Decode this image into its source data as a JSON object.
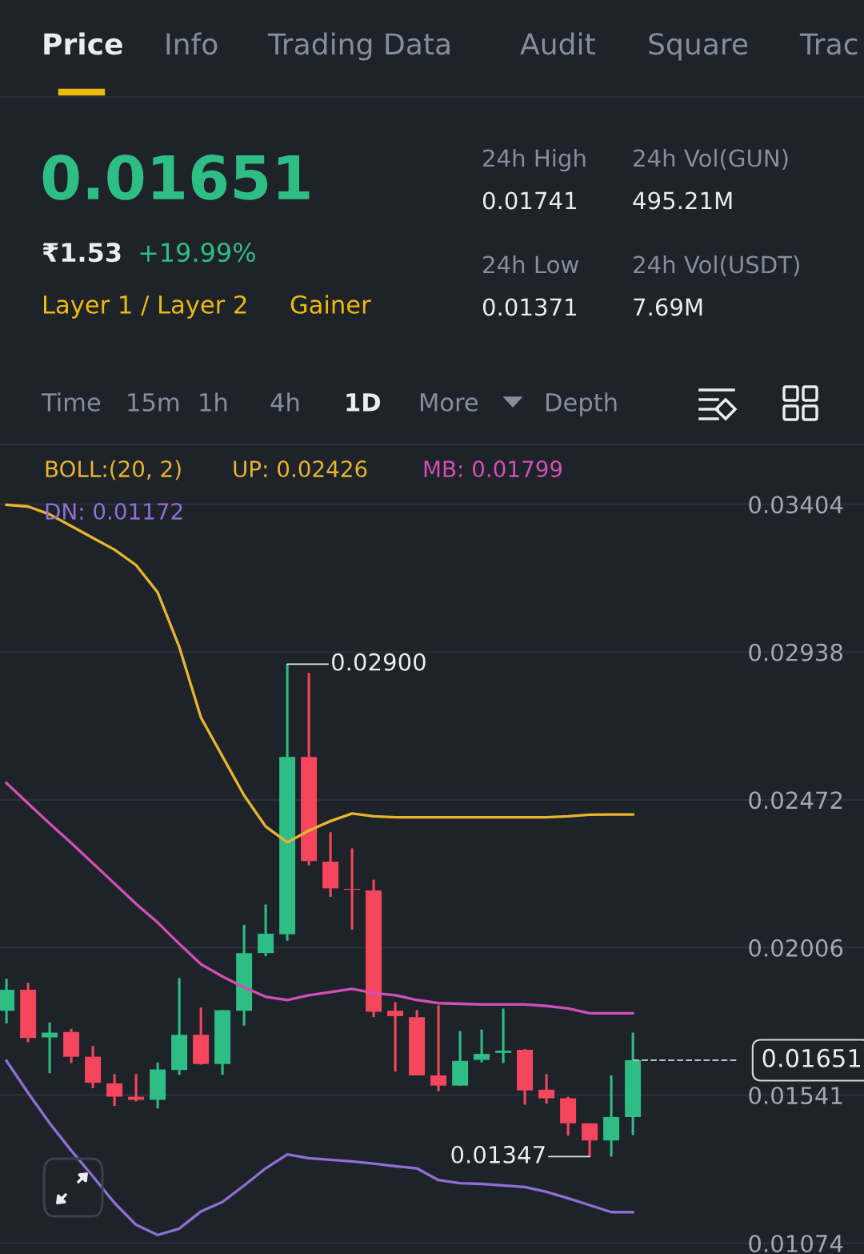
{
  "chart_data": {
    "type": "candlestick",
    "annotations": [
      "Price",
      "Info",
      "Trading Data",
      "Audit",
      "Square",
      "Trac",
      "0.01651",
      "₹1.53",
      "+19.99%",
      "Layer 1 / Layer 2",
      "Gainer",
      "24h High",
      "0.01741",
      "24h Vol(GUN)",
      "495.21M",
      "24h Low",
      "0.01371",
      "24h Vol(USDT)",
      "7.69M",
      "Time",
      "15m",
      "1h",
      "4h",
      "1D",
      "More",
      "Depth",
      "0.02900",
      "0.01347"
    ],
    "legend_title": "BOLL:(20, 2)",
    "legend": "top",
    "categories": [
      null,
      null,
      null,
      null,
      null,
      null,
      null,
      null,
      null,
      null,
      null,
      null,
      null,
      null,
      null,
      null,
      null,
      null,
      null,
      null,
      null,
      null,
      null,
      null,
      null,
      null,
      null,
      null,
      null,
      null
    ],
    "ohlc": [
      [
        0.01807,
        0.01908,
        0.01767,
        0.01873
      ],
      [
        0.01873,
        0.01895,
        0.01708,
        0.01721
      ],
      [
        0.01723,
        0.0177,
        0.0161,
        0.01738
      ],
      [
        0.0174,
        0.0175,
        0.01642,
        0.01662
      ],
      [
        0.01662,
        0.01696,
        0.01563,
        0.0158
      ],
      [
        0.01578,
        0.01607,
        0.01507,
        0.01536
      ],
      [
        0.01536,
        0.01607,
        0.01521,
        0.01526
      ],
      [
        0.01526,
        0.01644,
        0.01499,
        0.01622
      ],
      [
        0.0162,
        0.0191,
        0.01605,
        0.01731
      ],
      [
        0.01731,
        0.01817,
        0.01637,
        0.01639
      ],
      [
        0.01639,
        0.01809,
        0.01605,
        0.01809
      ],
      [
        0.01807,
        0.02078,
        0.0176,
        0.01989
      ],
      [
        0.01989,
        0.02142,
        0.01979,
        0.0205
      ],
      [
        0.02048,
        0.029,
        0.02028,
        0.02607
      ],
      [
        0.02607,
        0.02872,
        0.02265,
        0.02279
      ],
      [
        0.02277,
        0.0237,
        0.02166,
        0.02193
      ],
      [
        0.02191,
        0.02319,
        0.02063,
        0.02188
      ],
      [
        0.02186,
        0.0222,
        0.01787,
        0.01804
      ],
      [
        0.01807,
        0.01834,
        0.01615,
        0.0179
      ],
      [
        0.01787,
        0.01809,
        0.01603,
        0.01603
      ],
      [
        0.01603,
        0.01824,
        0.01553,
        0.01571
      ],
      [
        0.01571,
        0.01743,
        0.01571,
        0.01649
      ],
      [
        0.01652,
        0.01748,
        0.01644,
        0.01671
      ],
      [
        0.01674,
        0.01814,
        0.01642,
        0.01681
      ],
      [
        0.01684,
        0.01686,
        0.01511,
        0.01556
      ],
      [
        0.01558,
        0.01607,
        0.01514,
        0.01531
      ],
      [
        0.01531,
        0.01536,
        0.01413,
        0.01452
      ],
      [
        0.01452,
        0.01452,
        0.01347,
        0.01398
      ],
      [
        0.01398,
        0.01603,
        0.01347,
        0.01472
      ],
      [
        0.01472,
        0.01738,
        0.01415,
        0.01651
      ]
    ],
    "colors": [
      "#2ebd85",
      "#f6465d",
      "#2ebd85",
      "#f6465d",
      "#f6465d",
      "#f6465d",
      "#f6465d",
      "#2ebd85",
      "#2ebd85",
      "#f6465d",
      "#2ebd85",
      "#2ebd85",
      "#2ebd85",
      "#2ebd85",
      "#f6465d",
      "#f6465d",
      "#f6465d",
      "#f6465d",
      "#f6465d",
      "#f6465d",
      "#f6465d",
      "#2ebd85",
      "#2ebd85",
      "#2ebd85",
      "#f6465d",
      "#f6465d",
      "#f6465d",
      "#f6465d",
      "#2ebd85",
      "#2ebd85"
    ],
    "series": [
      {
        "name": "UP: 0.02426",
        "type": "line",
        "color": "#e9b42f",
        "values": [
          0.03402,
          0.03397,
          0.03372,
          0.03335,
          0.03298,
          0.03261,
          0.03212,
          0.03126,
          0.02954,
          0.02732,
          0.02609,
          0.02486,
          0.02388,
          0.02338,
          0.02375,
          0.02405,
          0.02429,
          0.0242,
          0.02417,
          0.02417,
          0.02417,
          0.02417,
          0.02417,
          0.02417,
          0.02417,
          0.02417,
          0.0242,
          0.02425,
          0.02426,
          0.02426
        ]
      },
      {
        "name": "MB: 0.01799",
        "type": "line",
        "color": "#d14fb8",
        "values": [
          0.02525,
          0.02461,
          0.02397,
          0.02336,
          0.02272,
          0.02208,
          0.02144,
          0.02085,
          0.02018,
          0.01954,
          0.01915,
          0.01881,
          0.01851,
          0.01841,
          0.01856,
          0.01866,
          0.01876,
          0.01863,
          0.01856,
          0.01841,
          0.01831,
          0.01829,
          0.01827,
          0.01827,
          0.01827,
          0.01822,
          0.01814,
          0.01799,
          0.01799,
          0.01799
        ]
      },
      {
        "name": "DN: 0.01172",
        "type": "line",
        "color": "#8f6fd3",
        "values": [
          0.01649,
          0.01548,
          0.01452,
          0.01366,
          0.01285,
          0.01201,
          0.01132,
          0.011,
          0.0112,
          0.01174,
          0.01204,
          0.01256,
          0.0131,
          0.01354,
          0.01342,
          0.01337,
          0.01332,
          0.01325,
          0.01317,
          0.0131,
          0.01273,
          0.01263,
          0.01261,
          0.01256,
          0.01251,
          0.01236,
          0.01216,
          0.01194,
          0.01172,
          0.01172
        ]
      }
    ],
    "ylim": [
      0.0104,
      0.0358
    ],
    "yticks": [
      0.03404,
      0.02938,
      0.02472,
      0.02006,
      0.01541,
      0.01074
    ],
    "ref_lines": [
      {
        "axis": "y",
        "value": 0.01651,
        "label": "0.01651",
        "color": "#b7bdc6",
        "line_style": "dashed"
      }
    ],
    "grid": "y",
    "tick_labels": "y",
    "marker": "none",
    "line_style": "solid"
  }
}
